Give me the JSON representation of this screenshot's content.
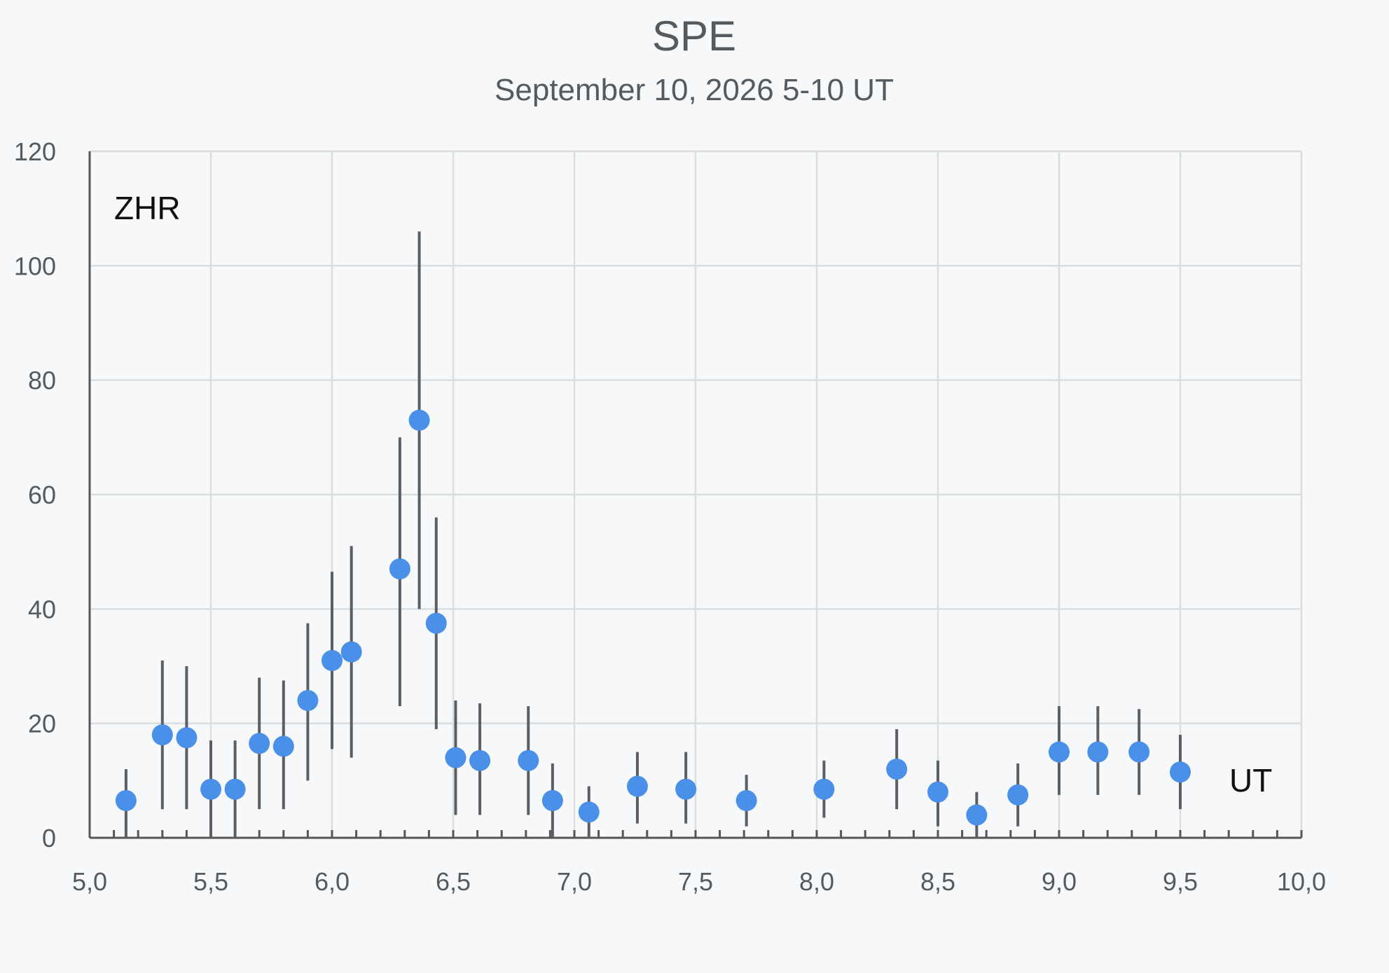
{
  "chart_data": {
    "type": "scatter",
    "title": "SPE",
    "subtitle": "September 10, 2026 5-10 UT",
    "ylabel": "ZHR",
    "xlabel": "UT",
    "xlim": [
      5.0,
      10.0
    ],
    "ylim": [
      0,
      120
    ],
    "x_ticks": [
      "5,0",
      "5,5",
      "6,0",
      "6,5",
      "7,0",
      "7,5",
      "8,0",
      "8,5",
      "9,0",
      "9,5",
      "10,0"
    ],
    "y_ticks": [
      "0",
      "20",
      "40",
      "60",
      "80",
      "100",
      "120"
    ],
    "grid": true,
    "colors": {
      "point": "#4a90e8",
      "error_bar": "#5b5f63",
      "grid": "#d9dde0"
    },
    "points": [
      {
        "x": 5.15,
        "y": 6.5,
        "lo": 0,
        "hi": 12
      },
      {
        "x": 5.3,
        "y": 18,
        "lo": 5,
        "hi": 31
      },
      {
        "x": 5.4,
        "y": 17.5,
        "lo": 5,
        "hi": 30
      },
      {
        "x": 5.5,
        "y": 8.5,
        "lo": 0,
        "hi": 17
      },
      {
        "x": 5.6,
        "y": 8.5,
        "lo": 0,
        "hi": 17
      },
      {
        "x": 5.7,
        "y": 16.5,
        "lo": 5,
        "hi": 28
      },
      {
        "x": 5.8,
        "y": 16,
        "lo": 5,
        "hi": 27.5
      },
      {
        "x": 5.9,
        "y": 24,
        "lo": 10,
        "hi": 37.5
      },
      {
        "x": 6.0,
        "y": 31,
        "lo": 15.5,
        "hi": 46.5
      },
      {
        "x": 6.08,
        "y": 32.5,
        "lo": 14,
        "hi": 51
      },
      {
        "x": 6.28,
        "y": 47,
        "lo": 23,
        "hi": 70
      },
      {
        "x": 6.36,
        "y": 73,
        "lo": 40,
        "hi": 106
      },
      {
        "x": 6.43,
        "y": 37.5,
        "lo": 19,
        "hi": 56
      },
      {
        "x": 6.51,
        "y": 14,
        "lo": 4,
        "hi": 24
      },
      {
        "x": 6.61,
        "y": 13.5,
        "lo": 4,
        "hi": 23.5
      },
      {
        "x": 6.81,
        "y": 13.5,
        "lo": 4,
        "hi": 23
      },
      {
        "x": 6.91,
        "y": 6.5,
        "lo": 0,
        "hi": 13
      },
      {
        "x": 7.06,
        "y": 4.5,
        "lo": 0,
        "hi": 9
      },
      {
        "x": 7.26,
        "y": 9,
        "lo": 2.5,
        "hi": 15
      },
      {
        "x": 7.46,
        "y": 8.5,
        "lo": 2.5,
        "hi": 15
      },
      {
        "x": 7.71,
        "y": 6.5,
        "lo": 2,
        "hi": 11
      },
      {
        "x": 8.03,
        "y": 8.5,
        "lo": 3.5,
        "hi": 13.5
      },
      {
        "x": 8.33,
        "y": 12,
        "lo": 5,
        "hi": 19
      },
      {
        "x": 8.5,
        "y": 8,
        "lo": 2,
        "hi": 13.5
      },
      {
        "x": 8.66,
        "y": 4,
        "lo": 0,
        "hi": 8
      },
      {
        "x": 8.83,
        "y": 7.5,
        "lo": 2,
        "hi": 13
      },
      {
        "x": 9.0,
        "y": 15,
        "lo": 7.5,
        "hi": 23
      },
      {
        "x": 9.16,
        "y": 15,
        "lo": 7.5,
        "hi": 23
      },
      {
        "x": 9.33,
        "y": 15,
        "lo": 7.5,
        "hi": 22.5
      },
      {
        "x": 9.5,
        "y": 11.5,
        "lo": 5,
        "hi": 18
      }
    ]
  }
}
